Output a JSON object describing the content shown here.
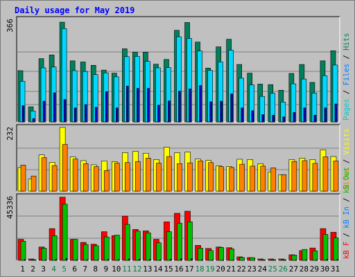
{
  "title": "Daily usage for May 2019",
  "panels": {
    "top": {
      "ymax_label": "366",
      "legend": [
        {
          "text": "Pages",
          "color": "#00c8c8"
        },
        {
          "text": " / ",
          "color": "#000000"
        },
        {
          "text": "Files",
          "color": "#0080ff"
        },
        {
          "text": " / ",
          "color": "#000000"
        },
        {
          "text": "Hits",
          "color": "#00805c"
        }
      ]
    },
    "middle": {
      "ymax_label": "232",
      "legend": [
        {
          "text": "Sites",
          "color": "#ff8000"
        },
        {
          "text": " / ",
          "color": "#000000"
        },
        {
          "text": "Visits",
          "color": "#ffff00"
        }
      ]
    },
    "bottom": {
      "ymax_label": "45336",
      "legend": [
        {
          "text": "kB F",
          "color": "#ff0000"
        },
        {
          "text": " / ",
          "color": "#000000"
        },
        {
          "text": "kB In",
          "color": "#0080ff"
        },
        {
          "text": " / ",
          "color": "#000000"
        },
        {
          "text": "kB Out",
          "color": "#00c000"
        }
      ]
    }
  },
  "colors": {
    "hits": "#00805c",
    "files": "#00d8ff",
    "pages": "#0000c0",
    "visits": "#ffff00",
    "sites": "#ff8000",
    "kbf": "#ff0000",
    "kbout": "#00c000",
    "kbin": "#0000a0",
    "weekday_label": "#000000",
    "weekend_label": "#008040"
  },
  "chart_data": [
    {
      "type": "bar",
      "title": "Daily usage for May 2019",
      "categories": [
        "1",
        "2",
        "3",
        "4",
        "5",
        "6",
        "7",
        "8",
        "9",
        "10",
        "11",
        "12",
        "13",
        "14",
        "15",
        "16",
        "17",
        "18",
        "19",
        "20",
        "21",
        "22",
        "23",
        "24",
        "25",
        "26",
        "27",
        "28",
        "29",
        "30",
        "31"
      ],
      "weekend_days": [
        "4",
        "5",
        "11",
        "12",
        "18",
        "19",
        "25",
        "26"
      ],
      "ylim": [
        0,
        366
      ],
      "ymax_label": "366",
      "series": [
        {
          "name": "Hits",
          "values": [
            183,
            54,
            226,
            239,
            356,
            218,
            214,
            202,
            185,
            174,
            261,
            249,
            249,
            206,
            223,
            327,
            355,
            285,
            192,
            268,
            295,
            205,
            174,
            135,
            133,
            113,
            173,
            205,
            141,
            218,
            254
          ]
        },
        {
          "name": "Files",
          "values": [
            145,
            39,
            193,
            196,
            333,
            183,
            180,
            169,
            175,
            161,
            233,
            234,
            216,
            193,
            194,
            304,
            298,
            253,
            184,
            214,
            256,
            156,
            132,
            91,
            102,
            71,
            136,
            153,
            103,
            165,
            203
          ]
        },
        {
          "name": "Pages",
          "values": [
            58,
            12,
            74,
            104,
            80,
            50,
            62,
            52,
            108,
            50,
            128,
            120,
            120,
            60,
            75,
            110,
            118,
            130,
            72,
            74,
            100,
            50,
            40,
            26,
            24,
            18,
            34,
            50,
            24,
            50,
            64
          ]
        }
      ]
    },
    {
      "type": "bar",
      "categories": [
        "1",
        "2",
        "3",
        "4",
        "5",
        "6",
        "7",
        "8",
        "9",
        "10",
        "11",
        "12",
        "13",
        "14",
        "15",
        "16",
        "17",
        "18",
        "19",
        "20",
        "21",
        "22",
        "23",
        "24",
        "25",
        "26",
        "27",
        "28",
        "29",
        "30",
        "31"
      ],
      "ylim": [
        0,
        232
      ],
      "ymax_label": "232",
      "series": [
        {
          "name": "Visits",
          "values": [
            86,
            45,
            132,
            105,
            232,
            125,
            111,
            96,
            110,
            107,
            140,
            145,
            138,
            115,
            160,
            140,
            142,
            117,
            112,
            92,
            90,
            116,
            115,
            100,
            70,
            60,
            115,
            120,
            115,
            150,
            126
          ]
        },
        {
          "name": "Sites",
          "values": [
            95,
            55,
            122,
            93,
            170,
            117,
            100,
            89,
            75,
            102,
            104,
            108,
            120,
            102,
            126,
            100,
            103,
            110,
            104,
            89,
            86,
            98,
            91,
            91,
            85,
            60,
            108,
            111,
            101,
            125,
            110
          ]
        }
      ]
    },
    {
      "type": "bar",
      "categories": [
        "1",
        "2",
        "3",
        "4",
        "5",
        "6",
        "7",
        "8",
        "9",
        "10",
        "11",
        "12",
        "13",
        "14",
        "15",
        "16",
        "17",
        "18",
        "19",
        "20",
        "21",
        "22",
        "23",
        "24",
        "25",
        "26",
        "27",
        "28",
        "29",
        "30",
        "31"
      ],
      "ylim": [
        0,
        45336
      ],
      "ymax_label": "45336",
      "series": [
        {
          "name": "kB F",
          "values": [
            15000,
            1000,
            9500,
            22600,
            45000,
            15000,
            12800,
            11500,
            20400,
            17600,
            31500,
            22000,
            21000,
            15000,
            27400,
            33500,
            35000,
            10700,
            8500,
            9500,
            9000,
            2500,
            2000,
            1000,
            1000,
            1000,
            4000,
            7000,
            8800,
            22600,
            20000
          ]
        },
        {
          "name": "kB Out",
          "values": [
            13600,
            500,
            8600,
            17500,
            40000,
            15000,
            11300,
            10400,
            16700,
            18000,
            25600,
            20800,
            19600,
            12500,
            20400,
            26500,
            27400,
            8700,
            7000,
            9200,
            8200,
            2000,
            1900,
            500,
            500,
            500,
            3800,
            7800,
            6800,
            18500,
            16000
          ]
        },
        {
          "name": "kB In",
          "values": [
            600,
            60,
            300,
            700,
            1400,
            500,
            400,
            300,
            700,
            600,
            1100,
            800,
            700,
            500,
            900,
            1200,
            1300,
            400,
            300,
            300,
            300,
            100,
            100,
            60,
            60,
            50,
            200,
            300,
            300,
            800,
            600
          ]
        }
      ]
    }
  ]
}
